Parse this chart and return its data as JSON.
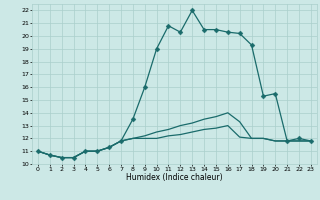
{
  "xlabel": "Humidex (Indice chaleur)",
  "bg_color": "#cce8e6",
  "grid_color": "#aacfcc",
  "line_color": "#1a6b6b",
  "xlim": [
    -0.5,
    23.5
  ],
  "ylim": [
    10,
    22.5
  ],
  "yticks": [
    10,
    11,
    12,
    13,
    14,
    15,
    16,
    17,
    18,
    19,
    20,
    21,
    22
  ],
  "xticks": [
    0,
    1,
    2,
    3,
    4,
    5,
    6,
    7,
    8,
    9,
    10,
    11,
    12,
    13,
    14,
    15,
    16,
    17,
    18,
    19,
    20,
    21,
    22,
    23
  ],
  "curves": [
    {
      "x": [
        0,
        1,
        2,
        3,
        4,
        5,
        6,
        7,
        8,
        9,
        10,
        11,
        12,
        13,
        14,
        15,
        16,
        17,
        18,
        19,
        20,
        21,
        22,
        23
      ],
      "y": [
        11.0,
        10.7,
        10.5,
        10.5,
        11.0,
        11.0,
        11.3,
        11.8,
        13.5,
        16.0,
        19.0,
        20.8,
        20.3,
        22.0,
        20.5,
        20.5,
        20.3,
        20.2,
        19.3,
        15.3,
        15.5,
        11.8,
        12.0,
        11.8
      ],
      "markers": true
    },
    {
      "x": [
        0,
        1,
        2,
        3,
        4,
        5,
        6,
        7,
        8,
        9,
        10,
        11,
        12,
        13,
        14,
        15,
        16,
        17,
        18,
        19,
        20,
        21,
        22,
        23
      ],
      "y": [
        11.0,
        10.7,
        10.5,
        10.5,
        11.0,
        11.0,
        11.3,
        11.8,
        12.0,
        12.2,
        12.5,
        12.7,
        13.0,
        13.2,
        13.5,
        13.7,
        14.0,
        13.3,
        12.0,
        12.0,
        11.8,
        11.8,
        11.8,
        11.8
      ],
      "markers": false
    },
    {
      "x": [
        0,
        1,
        2,
        3,
        4,
        5,
        6,
        7,
        8,
        9,
        10,
        11,
        12,
        13,
        14,
        15,
        16,
        17,
        18,
        19,
        20,
        21,
        22,
        23
      ],
      "y": [
        11.0,
        10.7,
        10.5,
        10.5,
        11.0,
        11.0,
        11.3,
        11.8,
        12.0,
        12.0,
        12.0,
        12.2,
        12.3,
        12.5,
        12.7,
        12.8,
        13.0,
        12.1,
        12.0,
        12.0,
        11.8,
        11.8,
        11.8,
        11.8
      ],
      "markers": false
    }
  ],
  "markersize": 2.5,
  "linewidth": 0.9,
  "xlabel_fontsize": 5.5,
  "tick_fontsize": 4.5
}
